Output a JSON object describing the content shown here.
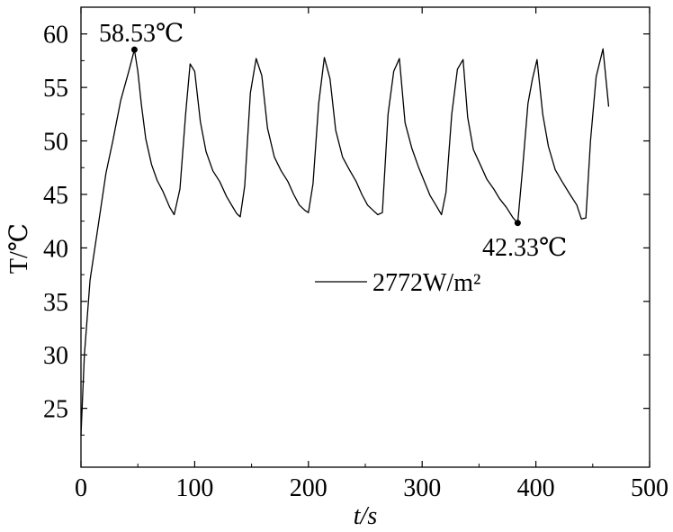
{
  "chart_data": {
    "type": "line",
    "xlabel": "t/s",
    "ylabel": "T/℃",
    "xlim": [
      0,
      500
    ],
    "ylim": [
      19.5,
      62.5
    ],
    "xticks": [
      0,
      100,
      200,
      300,
      400,
      500
    ],
    "yticks": [
      25,
      30,
      35,
      40,
      45,
      50,
      55,
      60
    ],
    "grid": false,
    "legend_position": "middle-right",
    "series": [
      {
        "name": "2772W/m²",
        "color": "#000000",
        "x": [
          0,
          3,
          8,
          15,
          22,
          28,
          35,
          42,
          47,
          50,
          53,
          57,
          62,
          67,
          72,
          78,
          82,
          87,
          92,
          96,
          100,
          105,
          110,
          116,
          122,
          128,
          133,
          137,
          140,
          144,
          149,
          154,
          159,
          164,
          170,
          176,
          182,
          187,
          192,
          197,
          200,
          204,
          209,
          214,
          219,
          224,
          230,
          236,
          242,
          247,
          252,
          257,
          261,
          265,
          270,
          275,
          280,
          285,
          291,
          297,
          302,
          307,
          312,
          317,
          321,
          326,
          331,
          336,
          340,
          345,
          351,
          357,
          363,
          368,
          374,
          380,
          384,
          388,
          393,
          397,
          401,
          406,
          411,
          417,
          423,
          430,
          436,
          440,
          444,
          448,
          453,
          459,
          464
        ],
        "y": [
          22.5,
          30,
          37,
          42,
          47,
          50,
          53.8,
          56.5,
          58.53,
          56.5,
          53.5,
          50.2,
          47.8,
          46.3,
          45.3,
          43.8,
          43.1,
          45.5,
          52.5,
          57.2,
          56.5,
          51.8,
          49,
          47.2,
          46.2,
          44.8,
          43.9,
          43.2,
          42.9,
          45.8,
          54.5,
          57.7,
          56.1,
          51.2,
          48.5,
          47.2,
          46.2,
          45,
          44,
          43.5,
          43.3,
          46,
          53.5,
          57.8,
          55.8,
          51,
          48.5,
          47.3,
          46.2,
          45,
          44,
          43.5,
          43.1,
          43.3,
          52.5,
          56.5,
          57.7,
          51.7,
          49.3,
          47.5,
          46.2,
          44.9,
          44,
          43.1,
          45.2,
          52.5,
          56.7,
          57.6,
          52.2,
          49.2,
          47.8,
          46.4,
          45.5,
          44.6,
          43.8,
          42.8,
          42.33,
          47,
          53.5,
          55.8,
          57.6,
          52.5,
          49.5,
          47.3,
          46.2,
          45,
          44,
          42.7,
          42.8,
          50,
          56,
          58.6,
          53.2
        ]
      }
    ],
    "annotations": [
      {
        "text": "58.53℃",
        "x": 47,
        "y": 58.53
      },
      {
        "text": "42.33℃",
        "x": 384,
        "y": 42.33
      }
    ]
  }
}
